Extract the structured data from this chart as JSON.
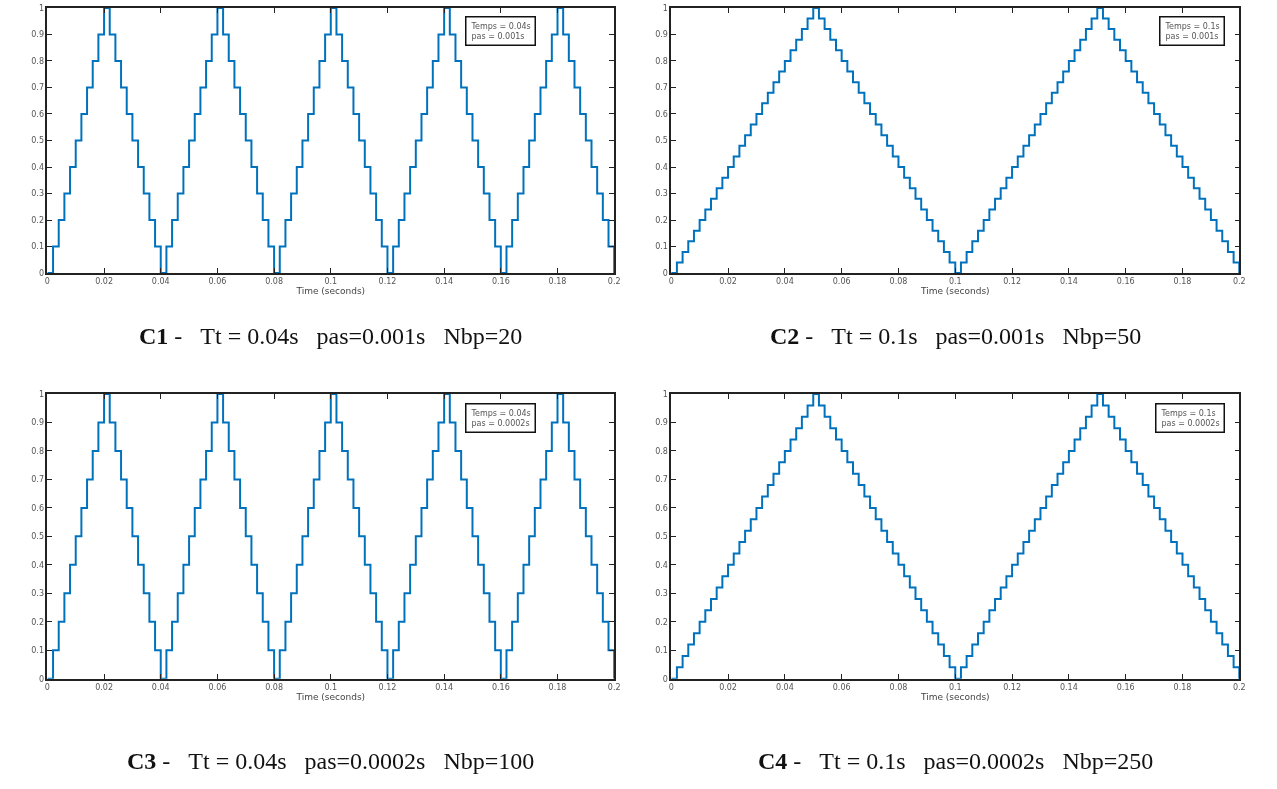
{
  "chart_data": [
    {
      "type": "step",
      "xlabel": "Time (seconds)",
      "xlim": [
        0,
        0.2
      ],
      "xticks": [
        0,
        0.02,
        0.04,
        0.06,
        0.08,
        0.1,
        0.12,
        0.14,
        0.16,
        0.18,
        0.2
      ],
      "ylim": [
        0,
        1
      ],
      "yticks": [
        0,
        0.1,
        0.2,
        0.3,
        0.4,
        0.5,
        0.6,
        0.7,
        0.8,
        0.9,
        1
      ],
      "annotations": [
        "Temps = 0.04s\npas = 0.001s",
        "C1 -   Tt = 0.04s   pas=0.001s   Nbp=20"
      ],
      "series": [
        {
          "color": "#0072bd",
          "x": [
            0,
            0.002,
            0.004,
            0.006,
            0.008,
            0.01,
            0.012,
            0.014,
            0.016,
            0.018,
            0.02,
            0.022,
            0.024,
            0.026,
            0.028,
            0.03,
            0.032,
            0.034,
            0.036,
            0.038,
            0.04,
            0.042,
            0.044,
            0.046,
            0.048,
            0.05,
            0.052,
            0.054,
            0.056,
            0.058,
            0.06,
            0.062,
            0.064,
            0.066,
            0.068,
            0.07,
            0.072,
            0.074,
            0.076,
            0.078,
            0.08,
            0.082,
            0.084,
            0.086,
            0.088,
            0.09,
            0.092,
            0.094,
            0.096,
            0.098,
            0.1,
            0.102,
            0.104,
            0.106,
            0.108,
            0.11,
            0.112,
            0.114,
            0.116,
            0.118,
            0.12,
            0.122,
            0.124,
            0.126,
            0.128,
            0.13,
            0.132,
            0.134,
            0.136,
            0.138,
            0.14,
            0.142,
            0.144,
            0.146,
            0.148,
            0.15,
            0.152,
            0.154,
            0.156,
            0.158,
            0.16,
            0.162,
            0.164,
            0.166,
            0.168,
            0.17,
            0.172,
            0.174,
            0.176,
            0.178,
            0.18,
            0.182,
            0.184,
            0.186,
            0.188,
            0.19,
            0.192,
            0.194,
            0.196,
            0.198,
            0.2
          ],
          "values": [
            0,
            0.1,
            0.2,
            0.3,
            0.4,
            0.5,
            0.6,
            0.7,
            0.8,
            0.9,
            1,
            0.9,
            0.8,
            0.7,
            0.6,
            0.5,
            0.4,
            0.3,
            0.2,
            0.1,
            0,
            0.1,
            0.2,
            0.3,
            0.4,
            0.5,
            0.6,
            0.7,
            0.8,
            0.9,
            1,
            0.9,
            0.8,
            0.7,
            0.6,
            0.5,
            0.4,
            0.3,
            0.2,
            0.1,
            0,
            0.1,
            0.2,
            0.3,
            0.4,
            0.5,
            0.6,
            0.7,
            0.8,
            0.9,
            1,
            0.9,
            0.8,
            0.7,
            0.6,
            0.5,
            0.4,
            0.3,
            0.2,
            0.1,
            0,
            0.1,
            0.2,
            0.3,
            0.4,
            0.5,
            0.6,
            0.7,
            0.8,
            0.9,
            1,
            0.9,
            0.8,
            0.7,
            0.6,
            0.5,
            0.4,
            0.3,
            0.2,
            0.1,
            0,
            0.1,
            0.2,
            0.3,
            0.4,
            0.5,
            0.6,
            0.7,
            0.8,
            0.9,
            1,
            0.9,
            0.8,
            0.7,
            0.6,
            0.5,
            0.4,
            0.3,
            0.2,
            0.1,
            0
          ]
        }
      ]
    },
    {
      "type": "step",
      "xlabel": "Time (seconds)",
      "xlim": [
        0,
        0.2
      ],
      "xticks": [
        0,
        0.02,
        0.04,
        0.06,
        0.08,
        0.1,
        0.12,
        0.14,
        0.16,
        0.18,
        0.2
      ],
      "ylim": [
        0,
        1
      ],
      "yticks": [
        0,
        0.1,
        0.2,
        0.3,
        0.4,
        0.5,
        0.6,
        0.7,
        0.8,
        0.9,
        1
      ],
      "annotations": [
        "Temps = 0.1s\npas = 0.001s",
        "C2 -   Tt = 0.1s   pas=0.001s   Nbp=50"
      ],
      "series": [
        {
          "color": "#0072bd",
          "x": [
            0,
            0.002,
            0.004,
            0.006,
            0.008,
            0.01,
            0.012,
            0.014,
            0.016,
            0.018,
            0.02,
            0.022,
            0.024,
            0.026,
            0.028,
            0.03,
            0.032,
            0.034,
            0.036,
            0.038,
            0.04,
            0.042,
            0.044,
            0.046,
            0.048,
            0.05,
            0.052,
            0.054,
            0.056,
            0.058,
            0.06,
            0.062,
            0.064,
            0.066,
            0.068,
            0.07,
            0.072,
            0.074,
            0.076,
            0.078,
            0.08,
            0.082,
            0.084,
            0.086,
            0.088,
            0.09,
            0.092,
            0.094,
            0.096,
            0.098,
            0.1,
            0.102,
            0.104,
            0.106,
            0.108,
            0.11,
            0.112,
            0.114,
            0.116,
            0.118,
            0.12,
            0.122,
            0.124,
            0.126,
            0.128,
            0.13,
            0.132,
            0.134,
            0.136,
            0.138,
            0.14,
            0.142,
            0.144,
            0.146,
            0.148,
            0.15,
            0.152,
            0.154,
            0.156,
            0.158,
            0.16,
            0.162,
            0.164,
            0.166,
            0.168,
            0.17,
            0.172,
            0.174,
            0.176,
            0.178,
            0.18,
            0.182,
            0.184,
            0.186,
            0.188,
            0.19,
            0.192,
            0.194,
            0.196,
            0.198,
            0.2
          ],
          "values": [
            0,
            0.04,
            0.08,
            0.12,
            0.16,
            0.2,
            0.24,
            0.28,
            0.32,
            0.36,
            0.4,
            0.44,
            0.48,
            0.52,
            0.56,
            0.6,
            0.64,
            0.68,
            0.72,
            0.76,
            0.8,
            0.84,
            0.88,
            0.92,
            0.96,
            1,
            0.96,
            0.92,
            0.88,
            0.84,
            0.8,
            0.76,
            0.72,
            0.68,
            0.64,
            0.6,
            0.56,
            0.52,
            0.48,
            0.44,
            0.4,
            0.36,
            0.32,
            0.28,
            0.24,
            0.2,
            0.16,
            0.12,
            0.08,
            0.04,
            0,
            0.04,
            0.08,
            0.12,
            0.16,
            0.2,
            0.24,
            0.28,
            0.32,
            0.36,
            0.4,
            0.44,
            0.48,
            0.52,
            0.56,
            0.6,
            0.64,
            0.68,
            0.72,
            0.76,
            0.8,
            0.84,
            0.88,
            0.92,
            0.96,
            1,
            0.96,
            0.92,
            0.88,
            0.84,
            0.8,
            0.76,
            0.72,
            0.68,
            0.64,
            0.6,
            0.56,
            0.52,
            0.48,
            0.44,
            0.4,
            0.36,
            0.32,
            0.28,
            0.24,
            0.2,
            0.16,
            0.12,
            0.08,
            0.04,
            0
          ]
        }
      ]
    },
    {
      "type": "step",
      "xlabel": "Time (seconds)",
      "xlim": [
        0,
        0.2
      ],
      "xticks": [
        0,
        0.02,
        0.04,
        0.06,
        0.08,
        0.1,
        0.12,
        0.14,
        0.16,
        0.18,
        0.2
      ],
      "ylim": [
        0,
        1
      ],
      "yticks": [
        0,
        0.1,
        0.2,
        0.3,
        0.4,
        0.5,
        0.6,
        0.7,
        0.8,
        0.9,
        1
      ],
      "annotations": [
        "Temps = 0.04s\npas = 0.0002s",
        "C3 -   Tt = 0.04s   pas=0.0002s   Nbp=100"
      ],
      "series": [
        {
          "color": "#0072bd",
          "x": [
            0,
            0.002,
            0.004,
            0.006,
            0.008,
            0.01,
            0.012,
            0.014,
            0.016,
            0.018,
            0.02,
            0.022,
            0.024,
            0.026,
            0.028,
            0.03,
            0.032,
            0.034,
            0.036,
            0.038,
            0.04,
            0.042,
            0.044,
            0.046,
            0.048,
            0.05,
            0.052,
            0.054,
            0.056,
            0.058,
            0.06,
            0.062,
            0.064,
            0.066,
            0.068,
            0.07,
            0.072,
            0.074,
            0.076,
            0.078,
            0.08,
            0.082,
            0.084,
            0.086,
            0.088,
            0.09,
            0.092,
            0.094,
            0.096,
            0.098,
            0.1,
            0.102,
            0.104,
            0.106,
            0.108,
            0.11,
            0.112,
            0.114,
            0.116,
            0.118,
            0.12,
            0.122,
            0.124,
            0.126,
            0.128,
            0.13,
            0.132,
            0.134,
            0.136,
            0.138,
            0.14,
            0.142,
            0.144,
            0.146,
            0.148,
            0.15,
            0.152,
            0.154,
            0.156,
            0.158,
            0.16,
            0.162,
            0.164,
            0.166,
            0.168,
            0.17,
            0.172,
            0.174,
            0.176,
            0.178,
            0.18,
            0.182,
            0.184,
            0.186,
            0.188,
            0.19,
            0.192,
            0.194,
            0.196,
            0.198,
            0.2
          ],
          "values": [
            0,
            0.1,
            0.2,
            0.3,
            0.4,
            0.5,
            0.6,
            0.7,
            0.8,
            0.9,
            1,
            0.9,
            0.8,
            0.7,
            0.6,
            0.5,
            0.4,
            0.3,
            0.2,
            0.1,
            0,
            0.1,
            0.2,
            0.3,
            0.4,
            0.5,
            0.6,
            0.7,
            0.8,
            0.9,
            1,
            0.9,
            0.8,
            0.7,
            0.6,
            0.5,
            0.4,
            0.3,
            0.2,
            0.1,
            0,
            0.1,
            0.2,
            0.3,
            0.4,
            0.5,
            0.6,
            0.7,
            0.8,
            0.9,
            1,
            0.9,
            0.8,
            0.7,
            0.6,
            0.5,
            0.4,
            0.3,
            0.2,
            0.1,
            0,
            0.1,
            0.2,
            0.3,
            0.4,
            0.5,
            0.6,
            0.7,
            0.8,
            0.9,
            1,
            0.9,
            0.8,
            0.7,
            0.6,
            0.5,
            0.4,
            0.3,
            0.2,
            0.1,
            0,
            0.1,
            0.2,
            0.3,
            0.4,
            0.5,
            0.6,
            0.7,
            0.8,
            0.9,
            1,
            0.9,
            0.8,
            0.7,
            0.6,
            0.5,
            0.4,
            0.3,
            0.2,
            0.1,
            0
          ]
        }
      ]
    },
    {
      "type": "step",
      "xlabel": "Time (seconds)",
      "xlim": [
        0,
        0.2
      ],
      "xticks": [
        0,
        0.02,
        0.04,
        0.06,
        0.08,
        0.1,
        0.12,
        0.14,
        0.16,
        0.18,
        0.2
      ],
      "ylim": [
        0,
        1
      ],
      "yticks": [
        0,
        0.1,
        0.2,
        0.3,
        0.4,
        0.5,
        0.6,
        0.7,
        0.8,
        0.9,
        1
      ],
      "annotations": [
        "Temps = 0.1s\npas = 0.0002s",
        "C4 -   Tt = 0.1s   pas=0.0002s   Nbp=250"
      ],
      "series": [
        {
          "color": "#0072bd",
          "x": [
            0,
            0.002,
            0.004,
            0.006,
            0.008,
            0.01,
            0.012,
            0.014,
            0.016,
            0.018,
            0.02,
            0.022,
            0.024,
            0.026,
            0.028,
            0.03,
            0.032,
            0.034,
            0.036,
            0.038,
            0.04,
            0.042,
            0.044,
            0.046,
            0.048,
            0.05,
            0.052,
            0.054,
            0.056,
            0.058,
            0.06,
            0.062,
            0.064,
            0.066,
            0.068,
            0.07,
            0.072,
            0.074,
            0.076,
            0.078,
            0.08,
            0.082,
            0.084,
            0.086,
            0.088,
            0.09,
            0.092,
            0.094,
            0.096,
            0.098,
            0.1,
            0.102,
            0.104,
            0.106,
            0.108,
            0.11,
            0.112,
            0.114,
            0.116,
            0.118,
            0.12,
            0.122,
            0.124,
            0.126,
            0.128,
            0.13,
            0.132,
            0.134,
            0.136,
            0.138,
            0.14,
            0.142,
            0.144,
            0.146,
            0.148,
            0.15,
            0.152,
            0.154,
            0.156,
            0.158,
            0.16,
            0.162,
            0.164,
            0.166,
            0.168,
            0.17,
            0.172,
            0.174,
            0.176,
            0.178,
            0.18,
            0.182,
            0.184,
            0.186,
            0.188,
            0.19,
            0.192,
            0.194,
            0.196,
            0.198,
            0.2
          ],
          "values": [
            0,
            0.04,
            0.08,
            0.12,
            0.16,
            0.2,
            0.24,
            0.28,
            0.32,
            0.36,
            0.4,
            0.44,
            0.48,
            0.52,
            0.56,
            0.6,
            0.64,
            0.68,
            0.72,
            0.76,
            0.8,
            0.84,
            0.88,
            0.92,
            0.96,
            1,
            0.96,
            0.92,
            0.88,
            0.84,
            0.8,
            0.76,
            0.72,
            0.68,
            0.64,
            0.6,
            0.56,
            0.52,
            0.48,
            0.44,
            0.4,
            0.36,
            0.32,
            0.28,
            0.24,
            0.2,
            0.16,
            0.12,
            0.08,
            0.04,
            0,
            0.04,
            0.08,
            0.12,
            0.16,
            0.2,
            0.24,
            0.28,
            0.32,
            0.36,
            0.4,
            0.44,
            0.48,
            0.52,
            0.56,
            0.6,
            0.64,
            0.68,
            0.72,
            0.76,
            0.8,
            0.84,
            0.88,
            0.92,
            0.96,
            1,
            0.96,
            0.92,
            0.88,
            0.84,
            0.8,
            0.76,
            0.72,
            0.68,
            0.64,
            0.6,
            0.56,
            0.52,
            0.48,
            0.44,
            0.4,
            0.36,
            0.32,
            0.28,
            0.24,
            0.2,
            0.16,
            0.12,
            0.08,
            0.04,
            0
          ]
        }
      ]
    }
  ]
}
